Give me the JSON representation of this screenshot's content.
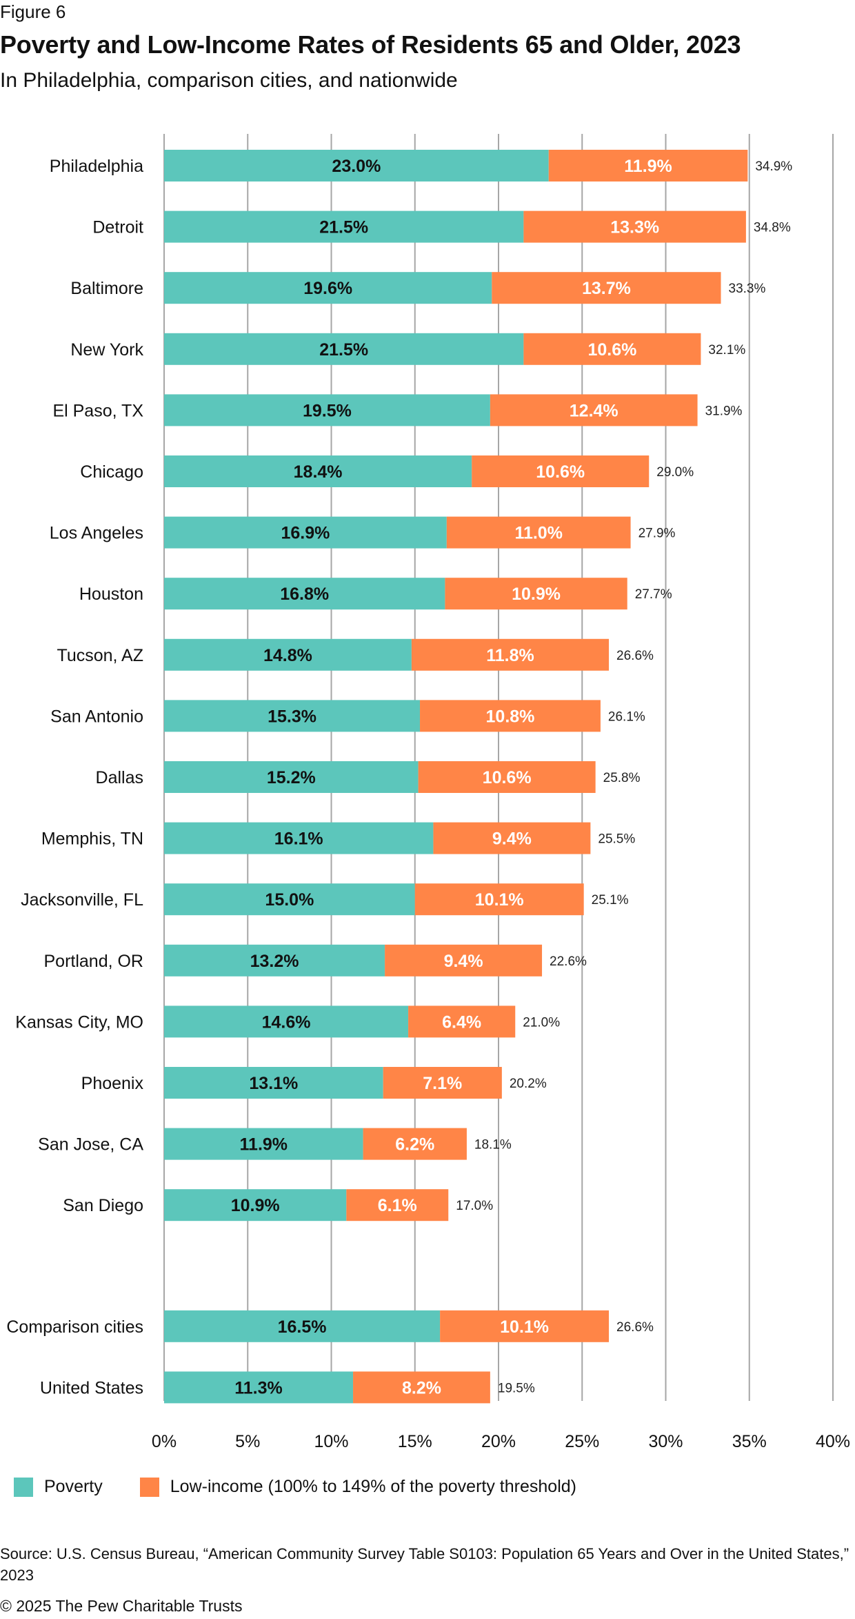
{
  "figure_label": "Figure 6",
  "title": "Poverty and Low-Income Rates of Residents 65 and Older, 2023",
  "subtitle": "In Philadelphia, comparison cities, and nationwide",
  "legend": {
    "poverty": "Poverty",
    "low_income": "Low-income (100% to 149% of the poverty threshold)"
  },
  "source": "Source: U.S. Census Bureau, “American Community Survey Table S0103: Population 65 Years and Over in the United States,” 2023",
  "copyright": "© 2025 The Pew Charitable Trusts",
  "colors": {
    "poverty": "#5cc6bb",
    "low_income": "#ff8547",
    "gridline": "#a6a6a6",
    "poverty_text": "#111111",
    "low_income_text": "#ffffff"
  },
  "chart_data": {
    "type": "bar",
    "orientation": "horizontal",
    "stacked": true,
    "categories": [
      "Philadelphia",
      "Detroit",
      "Baltimore",
      "New York",
      "El Paso, TX",
      "Chicago",
      "Los Angeles",
      "Houston",
      "Tucson, AZ",
      "San Antonio",
      "Dallas",
      "Memphis, TN",
      "Jacksonville, FL",
      "Portland, OR",
      "Kansas City, MO",
      "Phoenix",
      "San Jose, CA",
      "San Diego",
      "Comparison cities",
      "United States"
    ],
    "group_break_before": "Comparison cities",
    "series": [
      {
        "name": "Poverty",
        "values": [
          23.0,
          21.5,
          19.6,
          21.5,
          19.5,
          18.4,
          16.9,
          16.8,
          14.8,
          15.3,
          15.2,
          16.1,
          15.0,
          13.2,
          14.6,
          13.1,
          11.9,
          10.9,
          16.5,
          11.3
        ]
      },
      {
        "name": "Low-income (100% to 149% of the poverty threshold)",
        "values": [
          11.9,
          13.3,
          13.7,
          10.6,
          12.4,
          10.6,
          11.0,
          10.9,
          11.8,
          10.8,
          10.6,
          9.4,
          10.1,
          9.4,
          6.4,
          7.1,
          6.2,
          6.1,
          10.1,
          8.2
        ]
      }
    ],
    "totals": [
      34.9,
      34.8,
      33.3,
      32.1,
      31.9,
      29.0,
      27.9,
      27.7,
      26.6,
      26.1,
      25.8,
      25.5,
      25.1,
      22.6,
      21.0,
      20.2,
      18.1,
      17.0,
      26.6,
      19.5
    ],
    "xlim": [
      0,
      40
    ],
    "x_ticks": [
      0,
      5,
      10,
      15,
      20,
      25,
      30,
      35,
      40
    ],
    "x_tick_labels": [
      "0%",
      "5%",
      "10%",
      "15%",
      "20%",
      "25%",
      "30%",
      "35%",
      "40%"
    ],
    "value_format": "percent_1dp",
    "grid": "vertical",
    "legend_position": "bottom-left"
  }
}
